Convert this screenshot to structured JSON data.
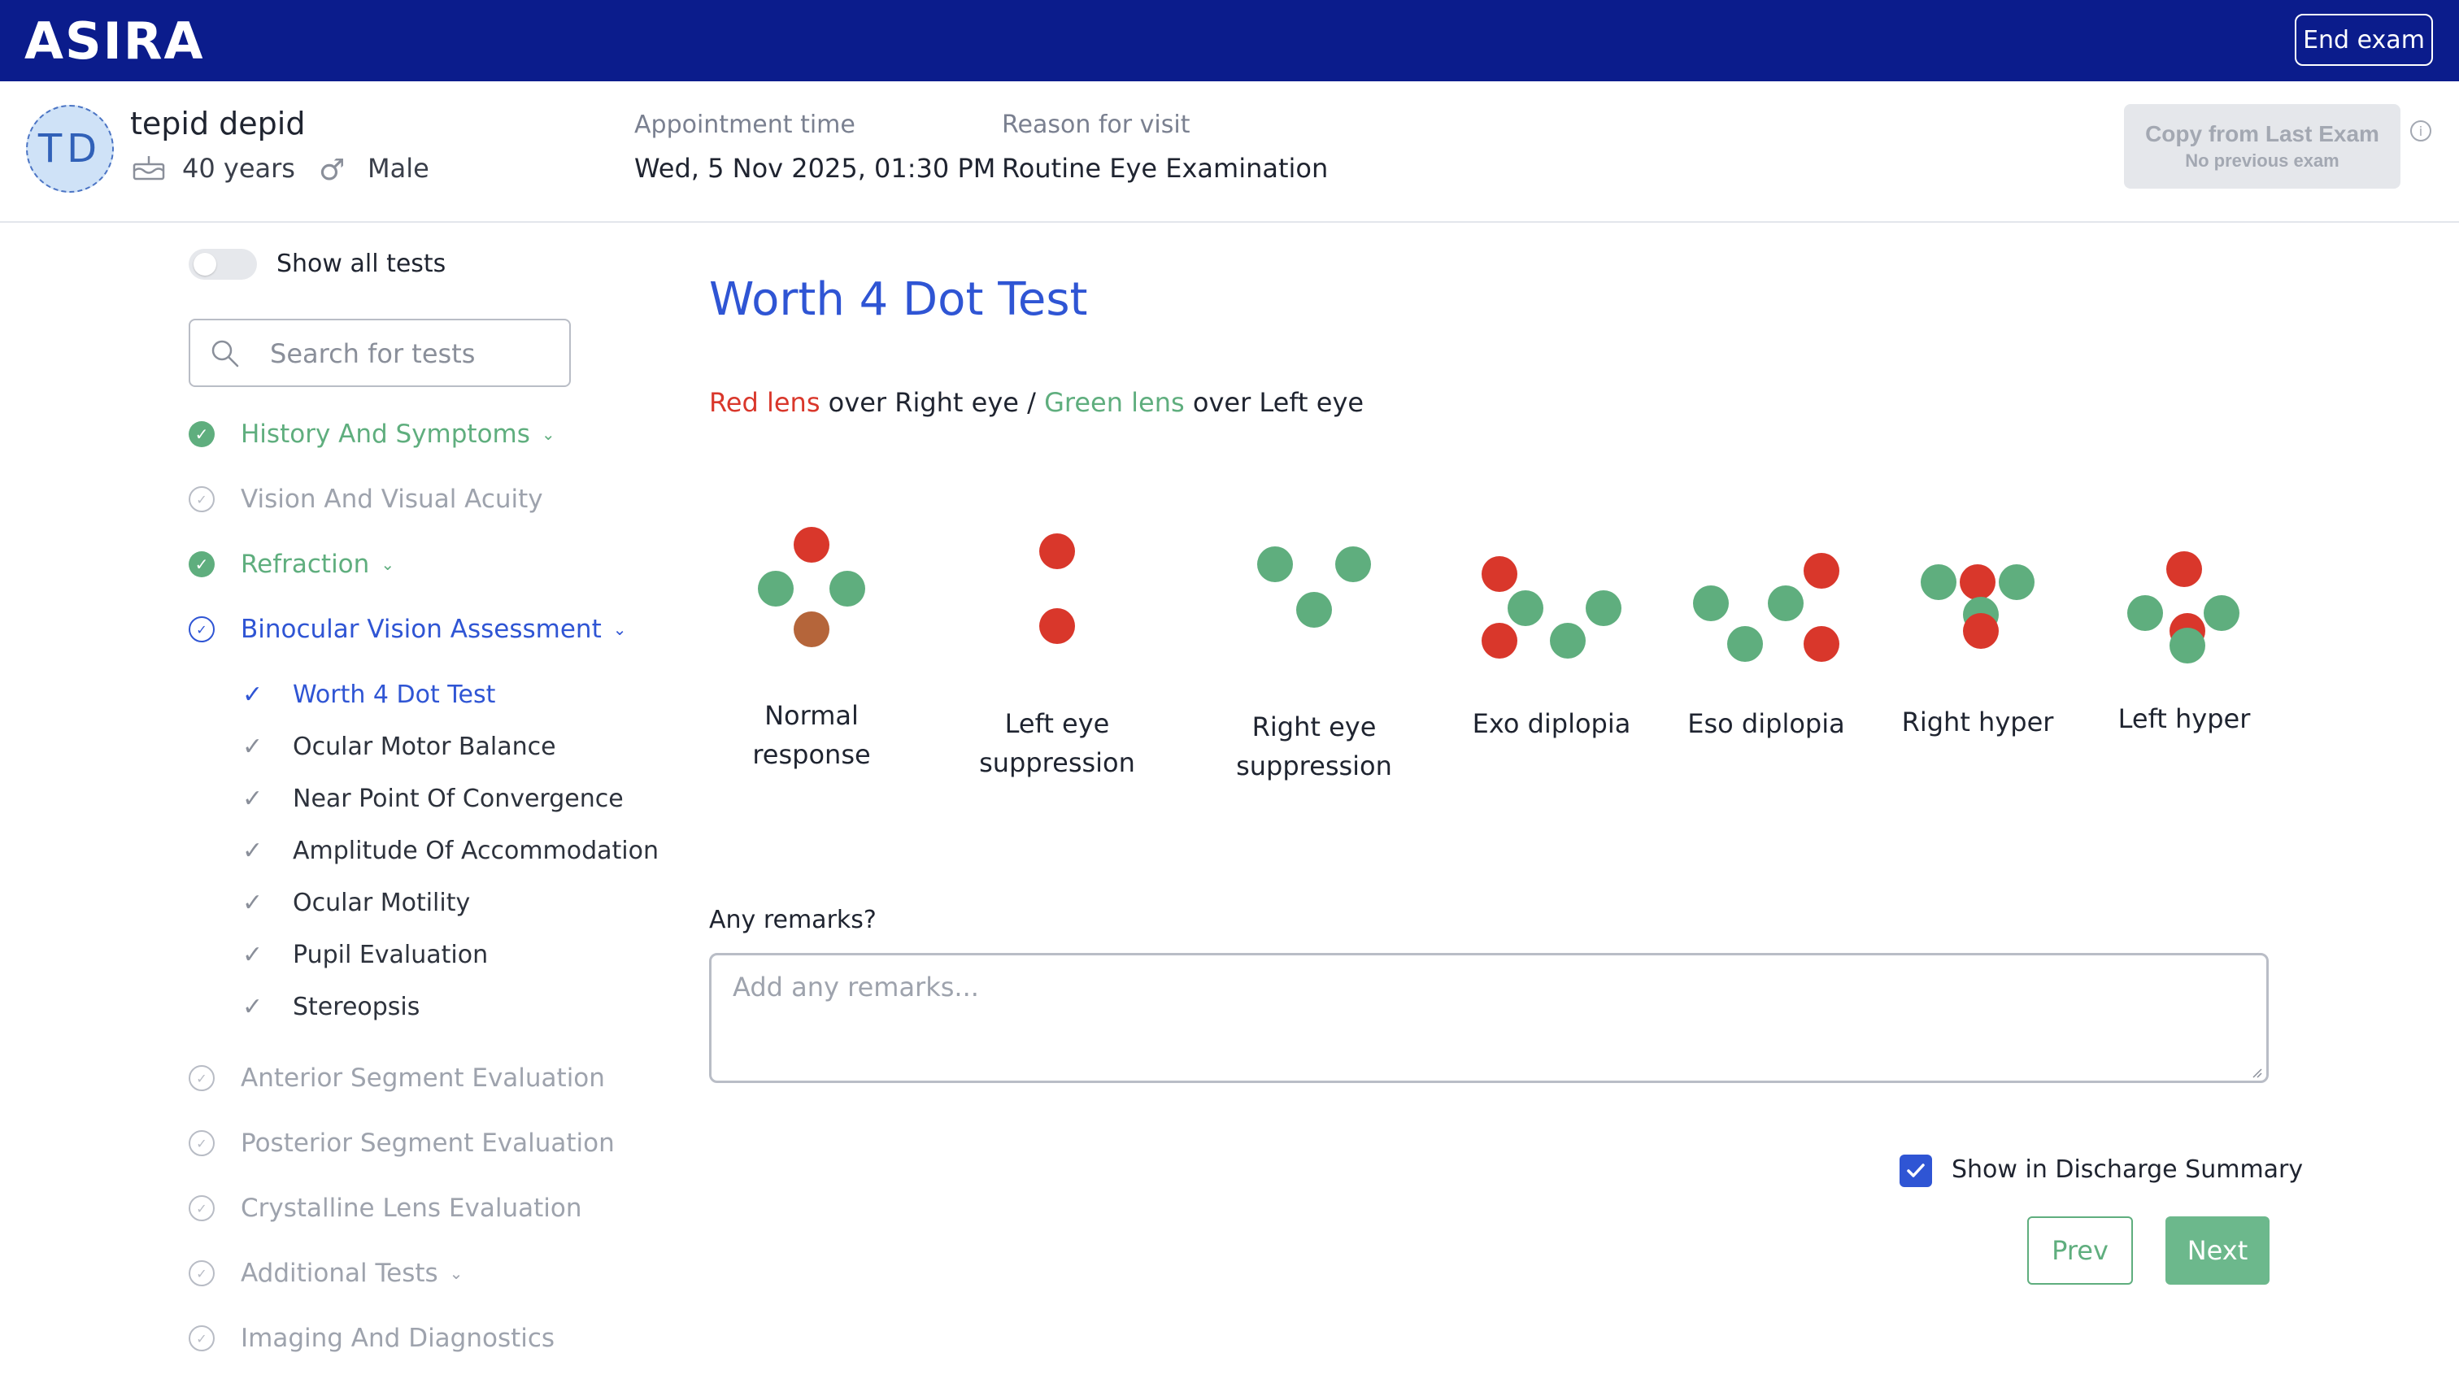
{
  "app": {
    "logo": "ASIRA",
    "end_exam": "End exam"
  },
  "patient": {
    "initials": "TD",
    "name": "tepid depid",
    "age": "40 years",
    "gender": "Male",
    "appointment_label": "Appointment time",
    "appointment_value": "Wed, 5 Nov 2025, 01:30 PM",
    "reason_label": "Reason for visit",
    "reason_value": "Routine Eye Examination"
  },
  "copy_exam": {
    "label": "Copy from Last Exam",
    "sub": "No previous exam"
  },
  "sidebar": {
    "show_all": "Show all tests",
    "show_all_on": false,
    "search_placeholder": "Search for tests",
    "sections": [
      {
        "label": "History And Symptoms",
        "status": "done",
        "chevron": true
      },
      {
        "label": "Vision And Visual Acuity",
        "status": "pending",
        "chevron": false
      },
      {
        "label": "Refraction",
        "status": "done",
        "chevron": true
      },
      {
        "label": "Binocular Vision Assessment",
        "status": "active",
        "chevron": true
      },
      {
        "label": "Anterior Segment Evaluation",
        "status": "pending",
        "chevron": false
      },
      {
        "label": "Posterior Segment Evaluation",
        "status": "pending",
        "chevron": false
      },
      {
        "label": "Crystalline Lens Evaluation",
        "status": "pending",
        "chevron": false
      },
      {
        "label": "Additional Tests",
        "status": "pending",
        "chevron": true
      },
      {
        "label": "Imaging And Diagnostics",
        "status": "pending",
        "chevron": false
      }
    ],
    "subitems": [
      {
        "label": "Worth 4 Dot Test",
        "active": true
      },
      {
        "label": "Ocular Motor Balance",
        "active": false
      },
      {
        "label": "Near Point Of Convergence",
        "active": false
      },
      {
        "label": "Amplitude Of Accommodation",
        "active": false
      },
      {
        "label": "Ocular Motility",
        "active": false
      },
      {
        "label": "Pupil Evaluation",
        "active": false
      },
      {
        "label": "Stereopsis",
        "active": false
      }
    ]
  },
  "test": {
    "title": "Worth 4 Dot Test",
    "lens_red": "Red lens",
    "lens_mid1": " over Right eye / ",
    "lens_green": "Green lens",
    "lens_mid2": " over Left eye",
    "options": [
      {
        "line1": "Normal",
        "line2": "response"
      },
      {
        "line1": "Left eye",
        "line2": "suppression"
      },
      {
        "line1": "Right eye",
        "line2": "suppression"
      },
      {
        "line1": "Exo diplopia",
        "line2": ""
      },
      {
        "line1": "Eso diplopia",
        "line2": ""
      },
      {
        "line1": "Right hyper",
        "line2": ""
      },
      {
        "line1": "Left hyper",
        "line2": ""
      }
    ],
    "remarks_label": "Any remarks?",
    "remarks_placeholder": "Add any remarks...",
    "discharge_label": "Show in Discharge Summary",
    "discharge_checked": true,
    "prev": "Prev",
    "next": "Next"
  },
  "colors": {
    "brand": "#0b1c8c",
    "accent": "#2f55d4",
    "success": "#5fae7e",
    "red_dot": "#d9372b",
    "green_dot": "#5fae7e",
    "mixed_dot": "#b5653a"
  }
}
